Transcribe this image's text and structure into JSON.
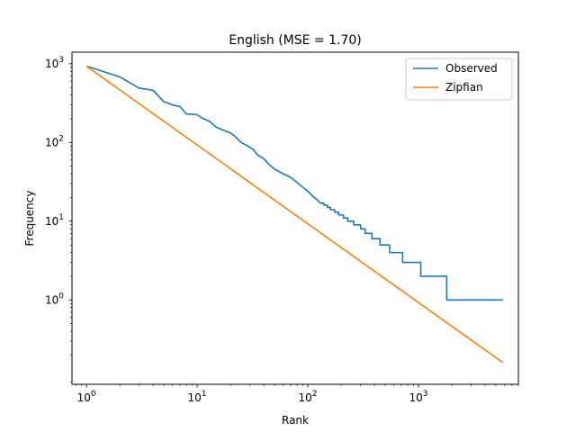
{
  "chart_data": {
    "type": "line",
    "title": "English (MSE = 1.70)",
    "xlabel": "Rank",
    "ylabel": "Frequency",
    "xscale": "log",
    "yscale": "log",
    "xlim": [
      0.74,
      8000
    ],
    "ylim": [
      0.085,
      1400
    ],
    "grid": false,
    "legend": "top-right",
    "x_ticks": [
      {
        "value": 1,
        "base": "10",
        "exp": "0"
      },
      {
        "value": 10,
        "base": "10",
        "exp": "1"
      },
      {
        "value": 100,
        "base": "10",
        "exp": "2"
      },
      {
        "value": 1000,
        "base": "10",
        "exp": "3"
      }
    ],
    "y_ticks": [
      {
        "value": 1,
        "base": "10",
        "exp": "0"
      },
      {
        "value": 10,
        "base": "10",
        "exp": "1"
      },
      {
        "value": 100,
        "base": "10",
        "exp": "2"
      },
      {
        "value": 1000,
        "base": "10",
        "exp": "3"
      }
    ],
    "series": [
      {
        "name": "Observed",
        "color": "#1f77b4",
        "points": [
          [
            1,
            930
          ],
          [
            2,
            680
          ],
          [
            3,
            490
          ],
          [
            4,
            460
          ],
          [
            5,
            330
          ],
          [
            6,
            300
          ],
          [
            7,
            285
          ],
          [
            8,
            230
          ],
          [
            10,
            225
          ],
          [
            11,
            205
          ],
          [
            13,
            185
          ],
          [
            15,
            155
          ],
          [
            18,
            140
          ],
          [
            20,
            132
          ],
          [
            22,
            120
          ],
          [
            25,
            100
          ],
          [
            28,
            92
          ],
          [
            32,
            82
          ],
          [
            35,
            70
          ],
          [
            40,
            62
          ],
          [
            45,
            52
          ],
          [
            50,
            46
          ],
          [
            60,
            40
          ],
          [
            70,
            36
          ],
          [
            80,
            31
          ],
          [
            90,
            27
          ],
          [
            100,
            24
          ],
          [
            110,
            21
          ],
          [
            120,
            19
          ],
          [
            130,
            17
          ],
          [
            140,
            16
          ],
          [
            150,
            15
          ],
          [
            160,
            14
          ],
          [
            175,
            13
          ],
          [
            190,
            12
          ],
          [
            210,
            11
          ],
          [
            230,
            10
          ],
          [
            260,
            9
          ],
          [
            300,
            8
          ],
          [
            330,
            7
          ],
          [
            380,
            6
          ],
          [
            450,
            5
          ],
          [
            550,
            4
          ],
          [
            720,
            3
          ],
          [
            1050,
            2
          ],
          [
            1800,
            1
          ],
          [
            5800,
            1
          ]
        ]
      },
      {
        "name": "Zipfian",
        "color": "#ff7f0e",
        "points": [
          [
            1,
            930
          ],
          [
            5800,
            0.16
          ]
        ]
      }
    ]
  }
}
